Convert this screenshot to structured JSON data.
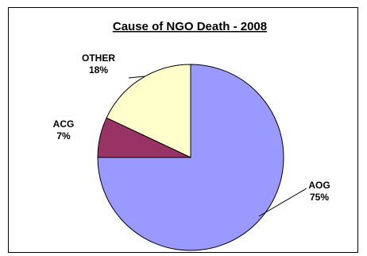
{
  "chart_data": {
    "type": "pie",
    "title": "Cause of NGO Death - 2008",
    "slices": [
      {
        "label": "AOG",
        "value": 75,
        "value_label": "75%",
        "color": "#9999ff"
      },
      {
        "label": "ACG",
        "value": 7,
        "value_label": "7%",
        "color": "#993366"
      },
      {
        "label": "OTHER",
        "value": 18,
        "value_label": "18%",
        "color": "#ffffcc"
      }
    ],
    "start": "12 o'clock",
    "direction": "clockwise"
  }
}
